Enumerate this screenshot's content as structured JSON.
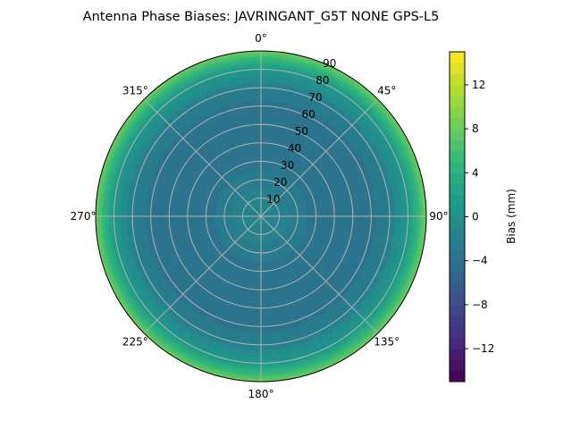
{
  "chart_data": {
    "type": "heatmap",
    "subtype": "polar-contour",
    "title": "Antenna Phase Biases: JAVRINGANT_G5T  NONE GPS-L5",
    "theta_ticks": [
      "0°",
      "45°",
      "90°",
      "135°",
      "180°",
      "225°",
      "270°",
      "315°"
    ],
    "r_ticks": [
      10,
      20,
      30,
      40,
      50,
      60,
      70,
      80,
      90
    ],
    "rlim": [
      0,
      90
    ],
    "grid": true,
    "colormap": "viridis",
    "colorbar": {
      "label": "Bias (mm)",
      "range": [
        -15,
        15
      ],
      "ticks": [
        -12,
        -8,
        -4,
        0,
        4,
        8,
        12
      ],
      "levels": 30
    },
    "zenith": [
      0,
      10,
      20,
      30,
      40,
      50,
      60,
      70,
      80,
      85,
      90
    ],
    "bias": [
      -1,
      -1.5,
      -2.5,
      -3.5,
      -4,
      -4,
      -3.5,
      -2,
      1,
      4,
      8
    ]
  }
}
